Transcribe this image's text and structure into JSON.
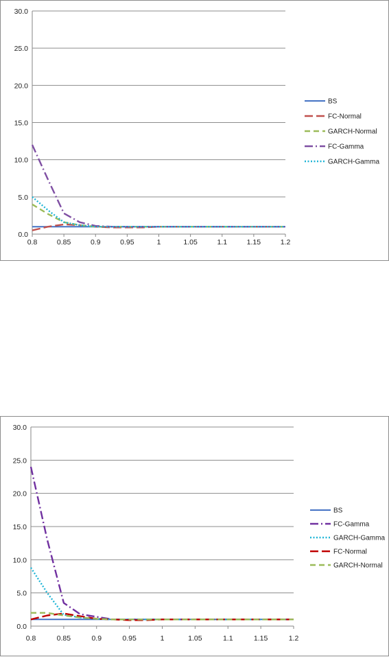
{
  "chart_data": [
    {
      "type": "line",
      "title": "",
      "xlabel": "",
      "ylabel": "",
      "ylim": [
        0,
        30
      ],
      "yticks": [
        "0.0",
        "5.0",
        "10.0",
        "15.0",
        "20.0",
        "25.0",
        "30.0"
      ],
      "xtick_labels": [
        "0.8",
        "0.85",
        "0.9",
        "0.95",
        "1",
        "1.05",
        "1.1",
        "1.15",
        "1.2"
      ],
      "x": [
        0.8,
        0.825,
        0.85,
        0.875,
        0.9,
        0.925,
        0.95,
        0.975,
        1.0,
        1.05,
        1.1,
        1.15,
        1.2
      ],
      "grid": true,
      "legend_position": "right",
      "series": [
        {
          "name": "BS",
          "color": "#4472C4",
          "dash": "solid",
          "values": [
            1.0,
            1.0,
            1.0,
            1.0,
            1.0,
            1.0,
            1.0,
            1.0,
            1.0,
            1.0,
            1.0,
            1.0,
            1.0
          ]
        },
        {
          "name": "FC-Normal",
          "color": "#C0504D",
          "dash": "longdash",
          "values": [
            0.5,
            1.0,
            1.3,
            1.2,
            1.0,
            0.9,
            0.9,
            0.9,
            1.0,
            1.0,
            1.0,
            1.0,
            1.0
          ]
        },
        {
          "name": "GARCH-Normal",
          "color": "#9BBB59",
          "dash": "dash",
          "values": [
            4.0,
            2.7,
            1.6,
            1.2,
            1.0,
            1.0,
            1.0,
            1.0,
            1.0,
            1.0,
            1.0,
            1.0,
            1.0
          ]
        },
        {
          "name": "FC-Gamma",
          "color": "#7F4FA3",
          "dash": "dashdot",
          "values": [
            12.0,
            7.3,
            2.8,
            1.6,
            1.1,
            1.0,
            1.0,
            1.0,
            1.0,
            1.0,
            1.0,
            1.0,
            1.0
          ]
        },
        {
          "name": "GARCH-Gamma",
          "color": "#1FB5D6",
          "dash": "dot",
          "values": [
            5.0,
            3.2,
            1.6,
            1.2,
            1.0,
            1.0,
            1.0,
            1.0,
            1.0,
            1.0,
            1.0,
            1.0,
            1.0
          ]
        }
      ]
    },
    {
      "type": "line",
      "title": "",
      "xlabel": "",
      "ylabel": "",
      "ylim": [
        0,
        30
      ],
      "yticks": [
        "0.0",
        "5.0",
        "10.0",
        "15.0",
        "20.0",
        "25.0",
        "30.0"
      ],
      "xtick_labels": [
        "0.8",
        "0.85",
        "0.9",
        "0.95",
        "1",
        "1.05",
        "1.1",
        "1.15",
        "1.2"
      ],
      "x": [
        0.8,
        0.825,
        0.85,
        0.875,
        0.9,
        0.925,
        0.95,
        0.975,
        1.0,
        1.05,
        1.1,
        1.15,
        1.2
      ],
      "grid": true,
      "legend_position": "right",
      "series": [
        {
          "name": "BS",
          "color": "#4472C4",
          "dash": "solid",
          "values": [
            1.0,
            1.0,
            1.0,
            1.0,
            1.0,
            1.0,
            1.0,
            1.0,
            1.0,
            1.0,
            1.0,
            1.0,
            1.0
          ]
        },
        {
          "name": "FC-Gamma",
          "color": "#7030A0",
          "dash": "dashdot",
          "values": [
            24.0,
            13.0,
            3.5,
            1.8,
            1.4,
            1.0,
            1.0,
            1.0,
            1.0,
            1.0,
            1.0,
            1.0,
            1.0
          ]
        },
        {
          "name": "GARCH-Gamma",
          "color": "#1FB5D6",
          "dash": "dot",
          "values": [
            8.8,
            5.0,
            1.7,
            1.3,
            1.1,
            1.0,
            1.0,
            1.0,
            1.0,
            1.0,
            1.0,
            1.0,
            1.0
          ]
        },
        {
          "name": "FC-Normal",
          "color": "#C00000",
          "dash": "longdash",
          "values": [
            1.0,
            1.6,
            1.9,
            1.5,
            1.1,
            1.0,
            0.9,
            0.9,
            1.0,
            1.0,
            1.0,
            1.0,
            1.0
          ]
        },
        {
          "name": "GARCH-Normal",
          "color": "#9BBB59",
          "dash": "dash",
          "values": [
            2.0,
            2.0,
            1.6,
            1.3,
            1.1,
            1.0,
            1.0,
            1.0,
            1.0,
            1.0,
            1.0,
            1.0,
            1.0
          ]
        }
      ]
    }
  ]
}
